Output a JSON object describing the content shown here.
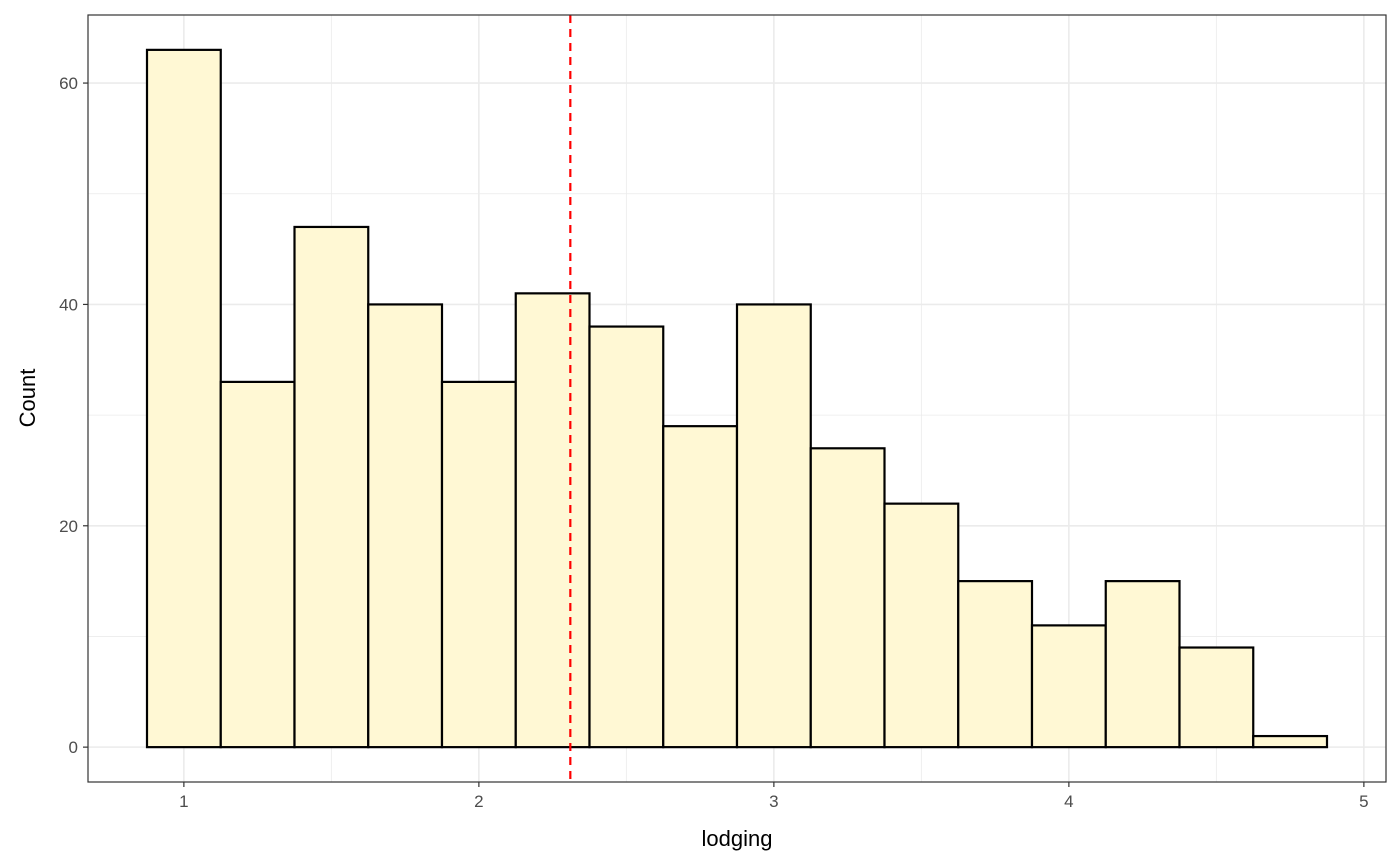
{
  "chart_data": {
    "type": "bar",
    "title": "",
    "xlabel": "lodging",
    "ylabel": "Count",
    "bin_width": 0.25,
    "bin_starts": [
      0.875,
      1.125,
      1.375,
      1.625,
      1.875,
      2.125,
      2.375,
      2.625,
      2.875,
      3.125,
      3.375,
      3.625,
      3.875,
      4.125,
      4.375,
      4.625
    ],
    "values": [
      63,
      33,
      47,
      40,
      33,
      41,
      38,
      29,
      40,
      27,
      22,
      15,
      11,
      15,
      9,
      1
    ],
    "xlim": [
      0.675,
      5.075
    ],
    "ylim": [
      -3.15,
      66.15
    ],
    "x_ticks": [
      1,
      2,
      3,
      4,
      5
    ],
    "x_tick_labels": [
      "1",
      "2",
      "3",
      "4",
      "5"
    ],
    "y_ticks": [
      0,
      20,
      40,
      60
    ],
    "y_tick_labels": [
      "0",
      "20",
      "40",
      "60"
    ],
    "vline": {
      "x": 2.31,
      "color": "#ff0000",
      "style": "dashed"
    },
    "bar_fill": "#fff8d4",
    "bar_stroke": "#000000",
    "grid": true
  }
}
